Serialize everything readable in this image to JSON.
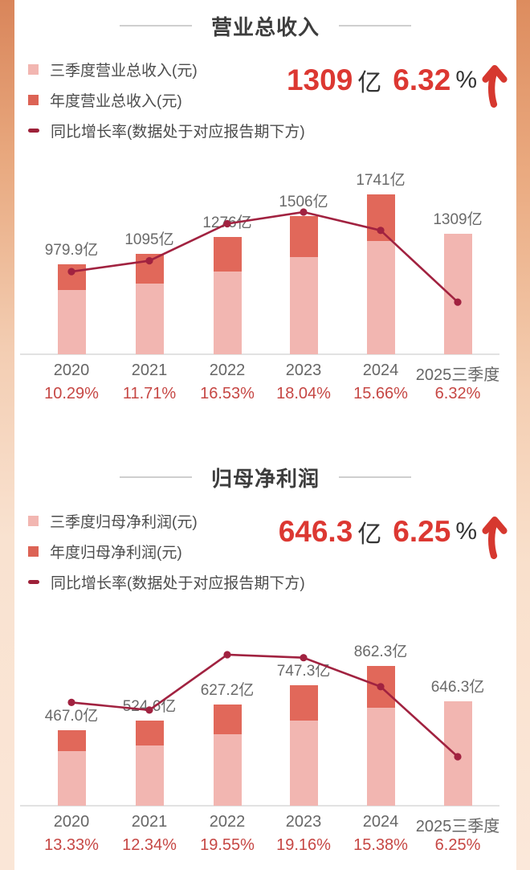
{
  "colors": {
    "q3_bar_pink": "#f2b6b1",
    "annual_bar_red": "#e1685a",
    "growth_line_crimson": "#a12240",
    "headline_red": "#dc3832",
    "growth_percent_red": "#c64744",
    "bar_label_gray": "#6a6a6a",
    "axis_gray": "#666666",
    "title_dark": "#3d3d3d",
    "side_strip_orange": "#dd8a5c"
  },
  "sections": [
    {
      "title": "营业总收入",
      "legend": [
        {
          "label": "三季度营业总收入(元)"
        },
        {
          "label": "年度营业总收入(元)"
        },
        {
          "label": "同比增长率(数据处于对应报告期下方)"
        }
      ],
      "headline": {
        "value": "1309",
        "unit": "亿",
        "rate": "6.32",
        "rate_unit": "%"
      }
    },
    {
      "title": "归母净利润",
      "legend": [
        {
          "label": "三季度归母净利润(元)"
        },
        {
          "label": "年度归母净利润(元)"
        },
        {
          "label": "同比增长率(数据处于对应报告期下方)"
        }
      ],
      "headline": {
        "value": "646.3",
        "unit": "亿",
        "rate": "6.25",
        "rate_unit": "%"
      }
    }
  ],
  "chart_data": [
    {
      "type": "bar+line",
      "title": "营业总收入",
      "categories": [
        "2020",
        "2021",
        "2022",
        "2023",
        "2024",
        "2025三季度"
      ],
      "series": [
        {
          "name": "三季度营业总收入(元)",
          "values": [
            696,
            770,
            898,
            1053,
            1231,
            1309
          ]
        },
        {
          "name": "年度营业总收入(元)",
          "values": [
            979.9,
            1095,
            1276,
            1506,
            1741,
            null
          ]
        }
      ],
      "bar_labels": [
        "979.9亿",
        "1095亿",
        "1276亿",
        "1506亿",
        "1741亿",
        "1309亿"
      ],
      "growth_rate_pct": [
        10.29,
        11.71,
        16.53,
        18.04,
        15.66,
        6.32
      ],
      "growth_labels": [
        "10.29%",
        "11.71%",
        "16.53%",
        "18.04%",
        "15.66%",
        "6.32%"
      ],
      "ylim": [
        0,
        2100
      ],
      "rate_axis_visible": false,
      "grid": false,
      "legend_position": "top-left",
      "stacked": true
    },
    {
      "type": "bar+line",
      "title": "归母净利润",
      "categories": [
        "2020",
        "2021",
        "2022",
        "2023",
        "2024",
        "2025三季度"
      ],
      "series": [
        {
          "name": "三季度归母净利润(元)",
          "values": [
            338,
            373,
            444,
            529,
            608,
            646.3
          ]
        },
        {
          "name": "年度归母净利润(元)",
          "values": [
            467.0,
            524.6,
            627.2,
            747.3,
            862.3,
            null
          ]
        }
      ],
      "bar_labels": [
        "467.0亿",
        "524.6亿",
        "627.2亿",
        "747.3亿",
        "862.3亿",
        "646.3亿"
      ],
      "growth_rate_pct": [
        13.33,
        12.34,
        19.55,
        19.16,
        15.38,
        6.25
      ],
      "growth_labels": [
        "13.33%",
        "12.34%",
        "19.55%",
        "19.16%",
        "15.38%",
        "6.25%"
      ],
      "ylim": [
        0,
        1200
      ],
      "rate_axis_visible": false,
      "grid": false,
      "legend_position": "top-left",
      "stacked": true
    }
  ]
}
